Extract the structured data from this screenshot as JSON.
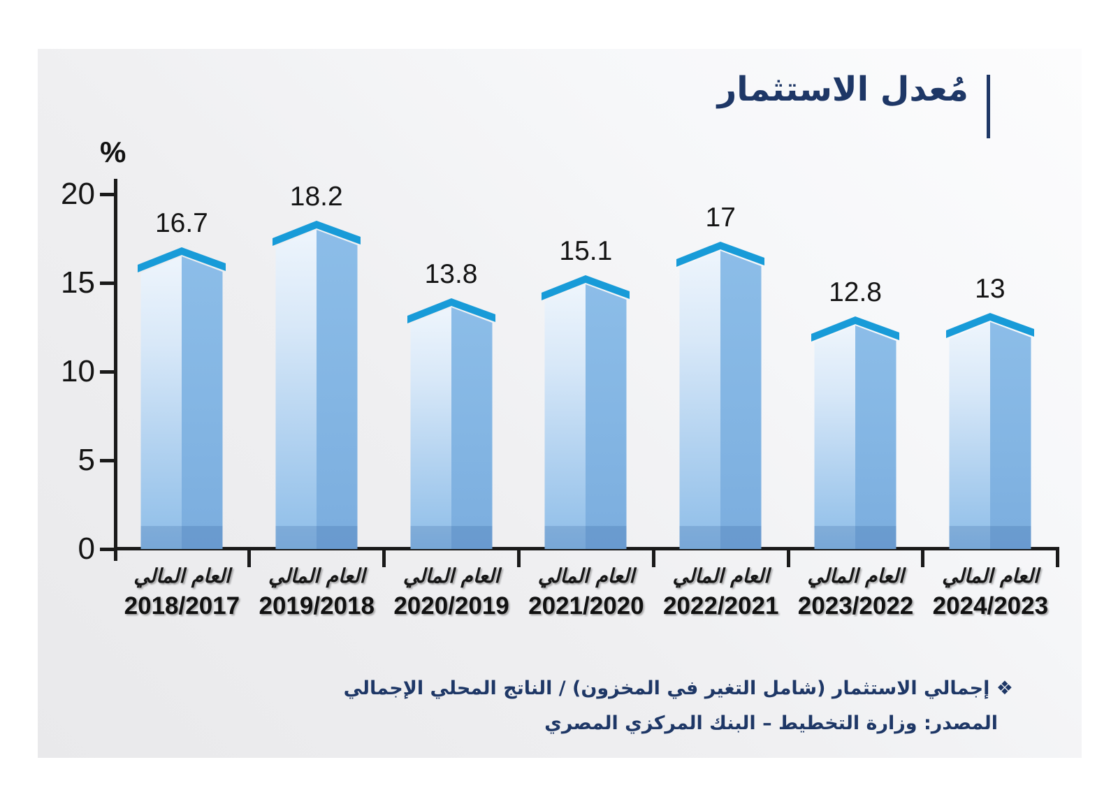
{
  "title": {
    "text": "مُعدل الاستثمار"
  },
  "y_axis": {
    "unit_label": "%"
  },
  "footnotes": {
    "definition": "❖ إجمالي الاستثمار (شامل التغير في المخزون) / الناتج المحلي الإجمالي",
    "source": "المصدر: وزارة التخطيط – البنك المركزي المصري"
  },
  "chart_data": {
    "type": "bar",
    "title": "مُعدل الاستثمار",
    "xlabel": "",
    "ylabel": "%",
    "ylim": [
      0,
      20
    ],
    "yticks": [
      0,
      5,
      10,
      15,
      20
    ],
    "grid": false,
    "legend": false,
    "category_prefix": "العام المالي",
    "categories": [
      "2018/2017",
      "2019/2018",
      "2020/2019",
      "2021/2020",
      "2022/2021",
      "2023/2022",
      "2024/2023"
    ],
    "values": [
      16.7,
      18.2,
      13.8,
      15.1,
      17,
      12.8,
      13
    ],
    "value_labels": [
      "16.7",
      "18.2",
      "13.8",
      "15.1",
      "17",
      "12.8",
      "13"
    ],
    "colors": {
      "cap": "#189bd8",
      "face_left_top": "#eef5fc",
      "face_left_bottom": "#8dbde8",
      "face_right_top": "#8cbde8",
      "face_right_bottom": "#7badde",
      "base_shade": "rgba(27,74,138,0.18)",
      "axis": "#1a1a1a",
      "text": "#141414",
      "accent_navy": "#1e3766"
    }
  }
}
